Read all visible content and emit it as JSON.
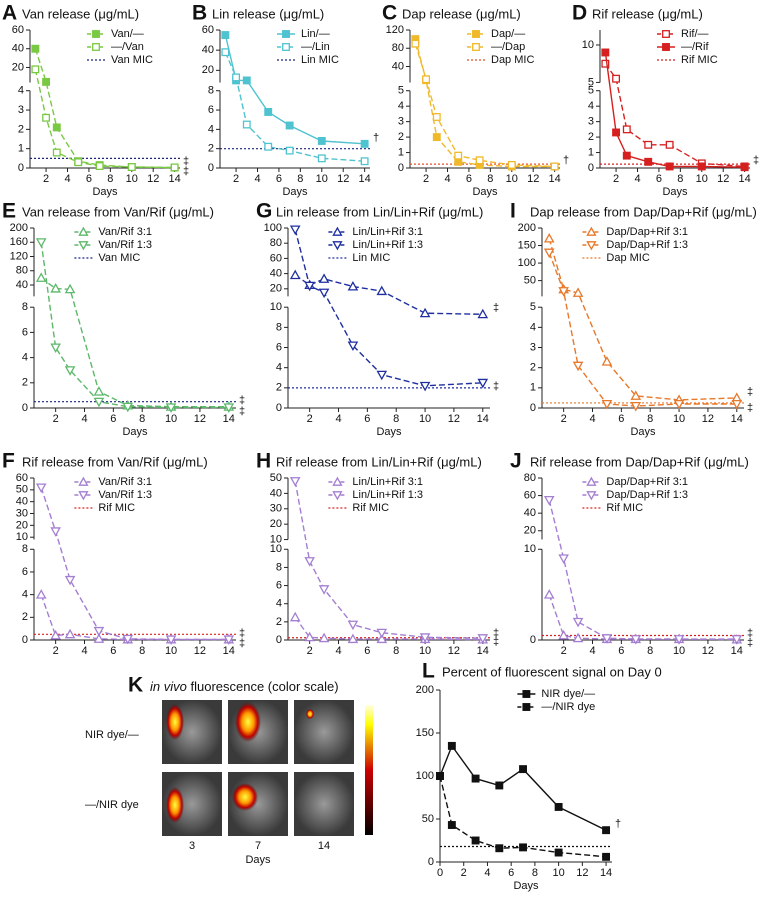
{
  "chart_data": [
    {
      "type": "line",
      "panel_label": "A",
      "title": "Van release (μg/mL)",
      "xlabel": "Days",
      "x": [
        1,
        2,
        3,
        5,
        7,
        10,
        14
      ],
      "xlim": [
        0.5,
        14.5
      ],
      "xticks": [
        2,
        4,
        6,
        8,
        10,
        12,
        14
      ],
      "y_segments": [
        {
          "ylim": [
            0,
            4
          ],
          "yticks": [
            0,
            1,
            2,
            3,
            4
          ]
        },
        {
          "ylim": [
            4,
            60
          ],
          "yticks": [
            20,
            40,
            60
          ]
        }
      ],
      "series": [
        {
          "name": "Van/—",
          "color": "#7ac943",
          "marker": "square",
          "dash": true,
          "values": [
            40,
            4.6,
            2.1,
            0.35,
            0.15,
            0.05,
            0.02
          ],
          "end_mark": "‡"
        },
        {
          "name": "—/Van",
          "color": "#7ac943",
          "marker": "square-open",
          "dash": true,
          "values": [
            18,
            2.6,
            0.8,
            0.3,
            0.1,
            0.05,
            0.03
          ],
          "end_mark": "‡"
        }
      ],
      "mic": {
        "name": "Van MIC",
        "value": 0.5,
        "color": "#1a237e"
      }
    },
    {
      "type": "line",
      "panel_label": "B",
      "title": "Lin release (μg/mL)",
      "xlabel": "Days",
      "x": [
        1,
        2,
        3,
        5,
        7,
        10,
        14
      ],
      "xlim": [
        0.5,
        14.5
      ],
      "xticks": [
        2,
        4,
        6,
        8,
        10,
        12,
        14
      ],
      "y_segments": [
        {
          "ylim": [
            0,
            8
          ],
          "yticks": [
            0,
            2,
            4,
            6,
            8
          ]
        },
        {
          "ylim": [
            8,
            60
          ],
          "yticks": [
            20,
            40,
            60
          ]
        }
      ],
      "series": [
        {
          "name": "Lin/—",
          "color": "#4fc3d0",
          "marker": "square",
          "dash": false,
          "values": [
            55,
            10,
            10,
            5.8,
            4.4,
            2.8,
            2.5
          ],
          "end_mark": "†"
        },
        {
          "name": "—/Lin",
          "color": "#4fc3d0",
          "marker": "square-open",
          "dash": true,
          "values": [
            38,
            13,
            4.5,
            2.2,
            1.8,
            1.0,
            0.7
          ]
        }
      ],
      "mic": {
        "name": "Lin MIC",
        "value": 2,
        "color": "#1a237e"
      }
    },
    {
      "type": "line",
      "panel_label": "C",
      "title": "Dap release (μg/mL)",
      "xlabel": "Days",
      "x": [
        1,
        2,
        3,
        5,
        7,
        10,
        14
      ],
      "xlim": [
        0.5,
        14.5
      ],
      "xticks": [
        2,
        4,
        6,
        8,
        10,
        12,
        14
      ],
      "y_segments": [
        {
          "ylim": [
            0,
            5
          ],
          "yticks": [
            0,
            1,
            2,
            3,
            4,
            5
          ]
        },
        {
          "ylim": [
            5,
            120
          ],
          "yticks": [
            40,
            80,
            120
          ]
        }
      ],
      "series": [
        {
          "name": "Dap/—",
          "color": "#f0b92a",
          "marker": "square",
          "dash": true,
          "values": [
            100,
            10,
            2,
            0.4,
            0.2,
            0.1,
            0.1
          ],
          "end_mark": "†"
        },
        {
          "name": "—/Dap",
          "color": "#f0b92a",
          "marker": "square-open",
          "dash": true,
          "values": [
            90,
            12,
            3.3,
            0.8,
            0.5,
            0.2,
            0.1
          ]
        }
      ],
      "mic": {
        "name": "Dap MIC",
        "value": 0.25,
        "color": "#e8502a"
      }
    },
    {
      "type": "line",
      "panel_label": "D",
      "title": "Rif release (μg/mL)",
      "xlabel": "Days",
      "x": [
        1,
        2,
        3,
        5,
        7,
        10,
        14
      ],
      "xlim": [
        0.5,
        14.5
      ],
      "xticks": [
        2,
        4,
        6,
        8,
        10,
        12,
        14
      ],
      "y_segments": [
        {
          "ylim": [
            0,
            5
          ],
          "yticks": [
            0,
            1,
            2,
            3,
            4,
            5
          ]
        },
        {
          "ylim": [
            5,
            12
          ],
          "yticks": [
            5,
            10
          ]
        }
      ],
      "series": [
        {
          "name": "Rif/—",
          "color": "#d62020",
          "marker": "square-open",
          "dash": true,
          "values": [
            7.5,
            5.5,
            2.5,
            1.5,
            1.5,
            0.3,
            0.1
          ],
          "end_mark": "‡"
        },
        {
          "name": "—/Rif",
          "color": "#d62020",
          "marker": "square",
          "dash": false,
          "values": [
            9,
            2.3,
            0.8,
            0.4,
            0.1,
            0.1,
            0.05
          ]
        }
      ],
      "mic": {
        "name": "Rif MIC",
        "value": 0.25,
        "color": "#d62020"
      }
    },
    {
      "type": "line",
      "panel_label": "E",
      "title": "Van release from Van/Rif (μg/mL)",
      "xlabel": "Days",
      "x": [
        1,
        2,
        3,
        5,
        7,
        10,
        14
      ],
      "xlim": [
        0.5,
        14.5
      ],
      "xticks": [
        2,
        4,
        6,
        8,
        10,
        12,
        14
      ],
      "y_segments": [
        {
          "ylim": [
            0,
            8
          ],
          "yticks": [
            0,
            2,
            4,
            6,
            8
          ]
        },
        {
          "ylim": [
            8,
            200
          ],
          "yticks": [
            40,
            80,
            120,
            160,
            200
          ]
        }
      ],
      "series": [
        {
          "name": "Van/Rif 3:1",
          "color": "#5cb86a",
          "marker": "triangle-up-open",
          "dash": true,
          "values": [
            60,
            30,
            28,
            1.3,
            0.2,
            0.1,
            0.1
          ],
          "end_mark": "‡"
        },
        {
          "name": "Van/Rif 1:3",
          "color": "#5cb86a",
          "marker": "triangle-down-open",
          "dash": true,
          "values": [
            160,
            4.8,
            3,
            0.5,
            0.1,
            0.05,
            0.05
          ],
          "end_mark": "‡"
        }
      ],
      "mic": {
        "name": "Van MIC",
        "value": 0.5,
        "color": "#1a237e"
      }
    },
    {
      "type": "line",
      "panel_label": "G",
      "title": "Lin release from Lin/Lin+Rif (μg/mL)",
      "xlabel": "Days",
      "x": [
        1,
        2,
        3,
        5,
        7,
        10,
        14
      ],
      "xlim": [
        0.5,
        14.5
      ],
      "xticks": [
        2,
        4,
        6,
        8,
        10,
        12,
        14
      ],
      "y_segments": [
        {
          "ylim": [
            0,
            10
          ],
          "yticks": [
            0,
            2,
            4,
            6,
            8,
            10
          ]
        },
        {
          "ylim": [
            10,
            100
          ],
          "yticks": [
            20,
            40,
            60,
            80,
            100
          ]
        }
      ],
      "series": [
        {
          "name": "Lin/Lin+Rif 3:1",
          "color": "#1f2fa0",
          "marker": "triangle-up-open",
          "dash": true,
          "values": [
            38,
            25,
            33,
            23,
            17,
            9.4,
            9.3
          ],
          "end_mark": "‡"
        },
        {
          "name": "Lin/Lin+Rif 1:3",
          "color": "#1f2fa0",
          "marker": "triangle-down-open",
          "dash": true,
          "values": [
            98,
            24,
            15,
            6.2,
            3.3,
            2.2,
            2.5
          ],
          "end_mark": "‡"
        }
      ],
      "mic": {
        "name": "Lin MIC",
        "value": 2,
        "color": "#1f2fa0"
      }
    },
    {
      "type": "line",
      "panel_label": "I",
      "title": "Dap release from Dap/Dap+Rif (μg/mL)",
      "xlabel": "Days",
      "x": [
        1,
        2,
        3,
        5,
        7,
        10,
        14
      ],
      "xlim": [
        0.5,
        14.5
      ],
      "xticks": [
        2,
        4,
        6,
        8,
        10,
        12,
        14
      ],
      "y_segments": [
        {
          "ylim": [
            0,
            5
          ],
          "yticks": [
            0,
            1,
            2,
            3,
            4,
            5
          ]
        },
        {
          "ylim": [
            5,
            200
          ],
          "yticks": [
            50,
            100,
            150,
            200
          ]
        }
      ],
      "series": [
        {
          "name": "Dap/Dap+Rif 3:1",
          "color": "#e8782a",
          "marker": "triangle-up-open",
          "dash": true,
          "values": [
            170,
            25,
            15,
            2.3,
            0.6,
            0.4,
            0.5
          ],
          "end_mark": "‡"
        },
        {
          "name": "Dap/Dap+Rif 1:3",
          "color": "#e8782a",
          "marker": "triangle-down-open",
          "dash": true,
          "values": [
            130,
            20,
            2.1,
            0.2,
            0.1,
            0.2,
            0.2
          ],
          "end_mark": "‡"
        }
      ],
      "mic": {
        "name": "Dap MIC",
        "value": 0.25,
        "color": "#e8782a"
      }
    },
    {
      "type": "line",
      "panel_label": "F",
      "title": "Rif release from Van/Rif (μg/mL)",
      "x": [
        1,
        2,
        3,
        5,
        7,
        10,
        14
      ],
      "xlim": [
        0.5,
        14.5
      ],
      "xticks": [
        2,
        4,
        6,
        8,
        10,
        12,
        14
      ],
      "y_segments": [
        {
          "ylim": [
            0,
            8
          ],
          "yticks": [
            0,
            2,
            4,
            6,
            8
          ]
        },
        {
          "ylim": [
            8,
            60
          ],
          "yticks": [
            10,
            20,
            30,
            40,
            50,
            60
          ]
        }
      ],
      "series": [
        {
          "name": "Van/Rif 3:1",
          "color": "#a47fd1",
          "marker": "triangle-up-open",
          "dash": true,
          "values": [
            4,
            0.4,
            0.5,
            0.1,
            0.05,
            0.05,
            0.05
          ],
          "end_mark": "‡"
        },
        {
          "name": "Van/Rif 1:3",
          "color": "#a47fd1",
          "marker": "triangle-down-open",
          "dash": true,
          "values": [
            52,
            15,
            5.3,
            0.8,
            0.1,
            0.05,
            0.05
          ],
          "end_mark": "‡"
        }
      ],
      "mic": {
        "name": "Rif MIC",
        "value": 0.5,
        "color": "#d62020"
      }
    },
    {
      "type": "line",
      "panel_label": "H",
      "title": "Rif release from Lin/Lin+Rif (μg/mL)",
      "x": [
        1,
        2,
        3,
        5,
        7,
        10,
        14
      ],
      "xlim": [
        0.5,
        14.5
      ],
      "xticks": [
        2,
        4,
        6,
        8,
        10,
        12,
        14
      ],
      "y_segments": [
        {
          "ylim": [
            0,
            10
          ],
          "yticks": [
            0,
            2,
            4,
            6,
            8,
            10
          ]
        },
        {
          "ylim": [
            10,
            50
          ],
          "yticks": [
            10,
            20,
            30,
            40,
            50
          ]
        }
      ],
      "series": [
        {
          "name": "Lin/Lin+Rif 3:1",
          "color": "#a47fd1",
          "marker": "triangle-up-open",
          "dash": true,
          "values": [
            2.5,
            0.3,
            0.2,
            0.1,
            0.1,
            0.1,
            0.05
          ],
          "end_mark": "‡"
        },
        {
          "name": "Lin/Lin+Rif 1:3",
          "color": "#a47fd1",
          "marker": "triangle-down-open",
          "dash": true,
          "values": [
            48,
            8.7,
            5.6,
            1.7,
            0.8,
            0.3,
            0.2
          ],
          "end_mark": "‡"
        }
      ],
      "mic": {
        "name": "Rif MIC",
        "value": 0.25,
        "color": "#d62020"
      }
    },
    {
      "type": "line",
      "panel_label": "J",
      "title": "Rif release from Dap/Dap+Rif (μg/mL)",
      "x": [
        1,
        2,
        3,
        5,
        7,
        10,
        14
      ],
      "xlim": [
        0.5,
        14.5
      ],
      "xticks": [
        2,
        4,
        6,
        8,
        10,
        12,
        14
      ],
      "y_segments": [
        {
          "ylim": [
            0,
            10
          ],
          "yticks": [
            0,
            10
          ]
        },
        {
          "ylim": [
            10,
            80
          ],
          "yticks": [
            20,
            40,
            60,
            80
          ]
        }
      ],
      "series": [
        {
          "name": "Dap/Dap+Rif 3:1",
          "color": "#a47fd1",
          "marker": "triangle-up-open",
          "dash": true,
          "values": [
            5,
            0.5,
            0.2,
            0.1,
            0.1,
            0.1,
            0.05
          ],
          "end_mark": "‡"
        },
        {
          "name": "Dap/Dap+Rif 1:3",
          "color": "#a47fd1",
          "marker": "triangle-down-open",
          "dash": true,
          "values": [
            55,
            9,
            2,
            0.2,
            0.1,
            0.1,
            0.1
          ],
          "end_mark": "‡"
        }
      ],
      "mic": {
        "name": "Rif MIC",
        "value": 0.5,
        "color": "#d62020"
      }
    },
    {
      "type": "line",
      "panel_label": "L",
      "title": "Percent of fluorescent signal on Day 0",
      "xlabel": "Days",
      "x": [
        0,
        1,
        3,
        5,
        7,
        10,
        14
      ],
      "xlim": [
        0,
        14.5
      ],
      "xticks": [
        0,
        2,
        4,
        6,
        8,
        10,
        12,
        14
      ],
      "y_segments": [
        {
          "ylim": [
            0,
            200
          ],
          "yticks": [
            0,
            50,
            100,
            150,
            200
          ]
        }
      ],
      "series": [
        {
          "name": "NIR dye/—",
          "color": "#111111",
          "marker": "square",
          "dash": false,
          "values": [
            100,
            135,
            97,
            89,
            108,
            64,
            37
          ],
          "end_mark": "†"
        },
        {
          "name": "—/NIR dye",
          "color": "#111111",
          "marker": "square",
          "dash": true,
          "values": [
            100,
            43,
            25,
            16,
            17,
            11,
            6
          ]
        }
      ],
      "reference_line": 18
    }
  ],
  "panel_k": {
    "label": "K",
    "title_italic": "in vivo",
    "title": "fluorescence (color scale)",
    "rows": [
      "NIR dye/—",
      "—/NIR dye"
    ],
    "columns": [
      "3",
      "7",
      "14"
    ],
    "xlabel": "Days"
  }
}
